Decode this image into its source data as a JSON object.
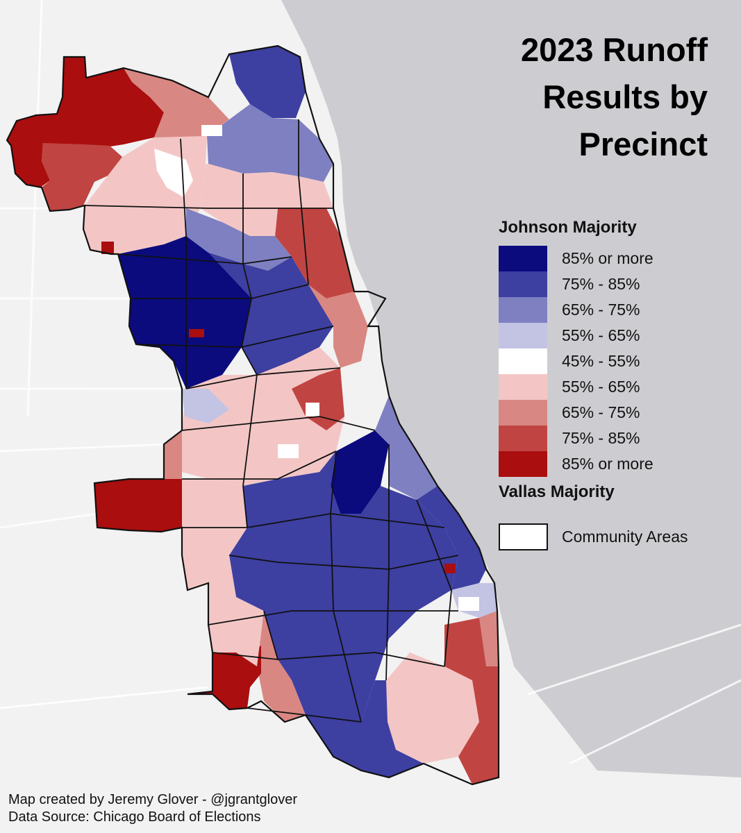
{
  "title_lines": [
    "2023 Runoff",
    "Results by",
    "Precinct"
  ],
  "legend": {
    "top_heading": "Johnson Majority",
    "bottom_heading": "Vallas Majority",
    "classes": [
      {
        "label": "85% or more",
        "color": "#0b0b7e",
        "candidate": "Johnson"
      },
      {
        "label": "75% - 85%",
        "color": "#3d3fa1",
        "candidate": "Johnson"
      },
      {
        "label": "65% - 75%",
        "color": "#7f80c1",
        "candidate": "Johnson"
      },
      {
        "label": "55% - 65%",
        "color": "#c3c3e3",
        "candidate": "Johnson"
      },
      {
        "label": "45% - 55%",
        "color": "#ffffff",
        "candidate": "Tie"
      },
      {
        "label": "55% - 65%",
        "color": "#f3c6c5",
        "candidate": "Vallas"
      },
      {
        "label": "65% - 75%",
        "color": "#d98782",
        "candidate": "Vallas"
      },
      {
        "label": "75% - 85%",
        "color": "#c04542",
        "candidate": "Vallas"
      },
      {
        "label": "85% or more",
        "color": "#aa0e0e",
        "candidate": "Vallas"
      }
    ],
    "boundary_label": "Community Areas"
  },
  "credits": {
    "author": "Map created by Jeremy Glover - @jgrantglover",
    "source": "Data Source: Chicago Board of Elections"
  },
  "colors": {
    "lake": "#cdcdd1",
    "land": "#f2f2f2",
    "road": "#ffffff",
    "outline": "#111111"
  }
}
